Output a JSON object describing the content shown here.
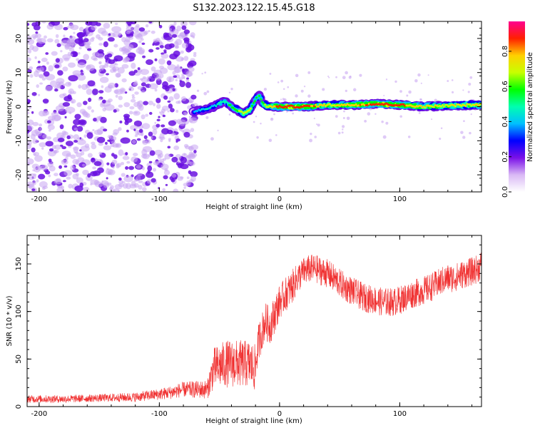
{
  "title": "S132.2023.122.15.45.G18",
  "colors": {
    "snr_line": "#f03030",
    "noise_purple": "#6a10e0",
    "colormap": [
      "#ffffff",
      "#d9b8f5",
      "#7a10e8",
      "#0000ff",
      "#00bfff",
      "#00ffb0",
      "#00ff00",
      "#c8ff00",
      "#ffd000",
      "#ff2000",
      "#ff0090"
    ]
  },
  "chart_data": [
    {
      "type": "heatmap",
      "title": "S132.2023.122.15.45.G18",
      "xlabel": "Height of straight line (km)",
      "ylabel": "Frequency (Hz)",
      "xlim": [
        -210,
        168
      ],
      "ylim": [
        -25,
        25
      ],
      "xticks": [
        -200,
        -100,
        0,
        100
      ],
      "xticklabels": [
        "-200",
        "-100",
        "0",
        "100"
      ],
      "yticks": [
        -20,
        -10,
        0,
        10,
        20
      ],
      "yticklabels": [
        "-20",
        "-10",
        "0",
        "10",
        "20"
      ],
      "noise_region_x": [
        -210,
        -70
      ],
      "ridge": {
        "x": [
          -72,
          -65,
          -60,
          -55,
          -50,
          -45,
          -40,
          -35,
          -30,
          -25,
          -20,
          -17,
          -14,
          -10,
          0,
          20,
          40,
          60,
          80,
          100,
          120,
          140,
          160,
          168
        ],
        "y": [
          -1.5,
          -1,
          -0.5,
          0,
          1,
          1.5,
          0,
          -1,
          -2,
          -1,
          2,
          3.5,
          1,
          0,
          0,
          0,
          0.5,
          0.5,
          0.8,
          0.5,
          0,
          0.3,
          0.5,
          0.5
        ],
        "amplitude": [
          0.35,
          0.45,
          0.45,
          0.45,
          0.5,
          0.5,
          0.6,
          0.6,
          0.7,
          0.7,
          0.55,
          0.55,
          0.6,
          0.7,
          0.9,
          0.9,
          0.75,
          0.8,
          0.9,
          0.9,
          0.75,
          0.75,
          0.75,
          0.75
        ]
      },
      "colorbar": {
        "label": "Normalized spectral amplitude",
        "range": [
          0,
          0.97
        ],
        "ticks": [
          0.0,
          0.2,
          0.4,
          0.6,
          0.8
        ],
        "ticklabels": [
          "0.0",
          "0.2",
          "0.4",
          "0.6",
          "0.8"
        ]
      }
    },
    {
      "type": "line",
      "xlabel": "Height of straight line (km)",
      "ylabel": "SNR (10 * v/v)",
      "xlim": [
        -210,
        168
      ],
      "ylim": [
        0,
        180
      ],
      "xticks": [
        -200,
        -100,
        0,
        100
      ],
      "xticklabels": [
        "-200",
        "-100",
        "0",
        "100"
      ],
      "yticks": [
        0,
        50,
        100,
        150
      ],
      "yticklabels": [
        "0",
        "50",
        "100",
        "150"
      ],
      "series": [
        {
          "x": [
            -210,
            -180,
            -150,
            -120,
            -100,
            -90,
            -80,
            -70,
            -60,
            -55,
            -45,
            -40,
            -35,
            -25,
            -20,
            -18,
            -12,
            -8,
            -3,
            0,
            5,
            10,
            15,
            20,
            25,
            30,
            35,
            40,
            45,
            50,
            55,
            60,
            65,
            70,
            75,
            80,
            85,
            90,
            95,
            100,
            105,
            110,
            115,
            120,
            125,
            130,
            135,
            140,
            145,
            150,
            155,
            160,
            165,
            168
          ],
          "y": [
            8,
            8,
            9,
            10,
            13,
            15,
            18,
            18,
            18,
            40,
            45,
            45,
            45,
            45,
            40,
            65,
            90,
            85,
            100,
            110,
            118,
            125,
            135,
            142,
            145,
            145,
            142,
            140,
            135,
            130,
            125,
            122,
            118,
            115,
            113,
            112,
            110,
            110,
            110,
            112,
            115,
            118,
            120,
            122,
            125,
            128,
            132,
            135,
            135,
            138,
            140,
            142,
            145,
            150
          ],
          "noise": [
            4,
            4,
            4,
            5,
            6,
            7,
            8,
            9,
            10,
            22,
            25,
            25,
            25,
            25,
            25,
            20,
            20,
            20,
            20,
            18,
            18,
            18,
            16,
            15,
            15,
            15,
            15,
            15,
            15,
            15,
            15,
            15,
            15,
            15,
            15,
            15,
            15,
            15,
            15,
            15,
            15,
            15,
            15,
            15,
            15,
            15,
            15,
            15,
            15,
            15,
            15,
            15,
            15,
            15
          ]
        }
      ]
    }
  ]
}
